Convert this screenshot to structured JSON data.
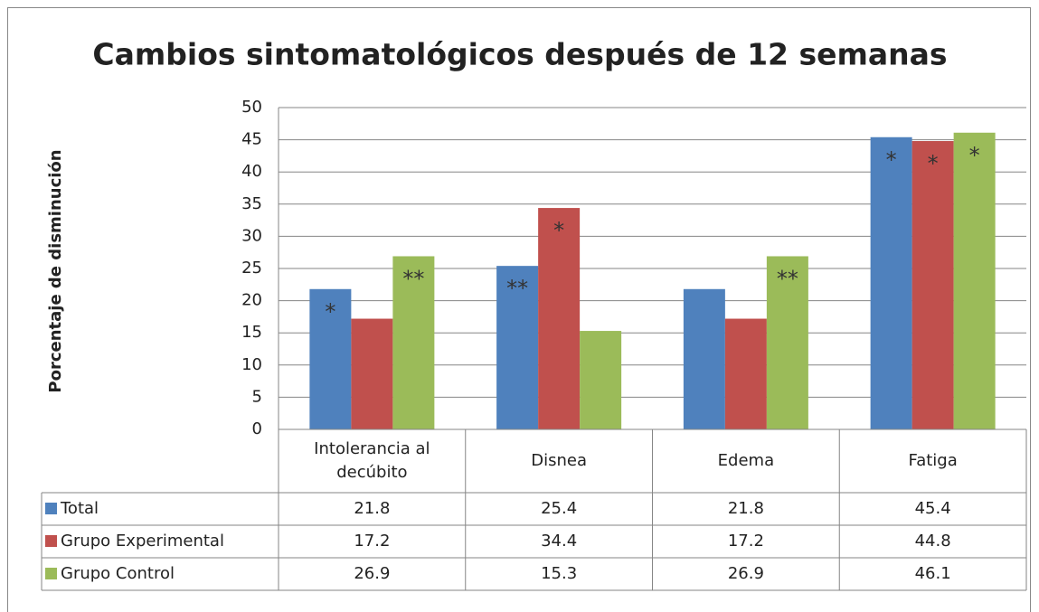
{
  "chart_data": {
    "type": "bar",
    "title": "Cambios sintomatológicos después de 12 semanas",
    "y_label": "Porcentaje de disminución",
    "categories": [
      "Intolerancia al decúbito",
      "Disnea",
      "Edema",
      "Fatiga"
    ],
    "series": [
      {
        "name": "Total",
        "color": "#4f81bd",
        "values": [
          21.8,
          25.4,
          21.8,
          45.4
        ],
        "markers": [
          "*",
          "**",
          null,
          "*"
        ]
      },
      {
        "name": "Grupo Experimental",
        "color": "#c0504d",
        "values": [
          17.2,
          34.4,
          17.2,
          44.8
        ],
        "markers": [
          null,
          "*",
          null,
          "*"
        ]
      },
      {
        "name": "Grupo Control",
        "color": "#9bbb59",
        "values": [
          26.9,
          15.3,
          26.9,
          46.1
        ],
        "markers": [
          "**",
          null,
          "**",
          "*"
        ]
      }
    ],
    "ylim": [
      0,
      50
    ],
    "yticks": [
      0,
      5,
      10,
      15,
      20,
      25,
      30,
      35,
      40,
      45,
      50
    ],
    "grid": true,
    "data_table": true
  }
}
